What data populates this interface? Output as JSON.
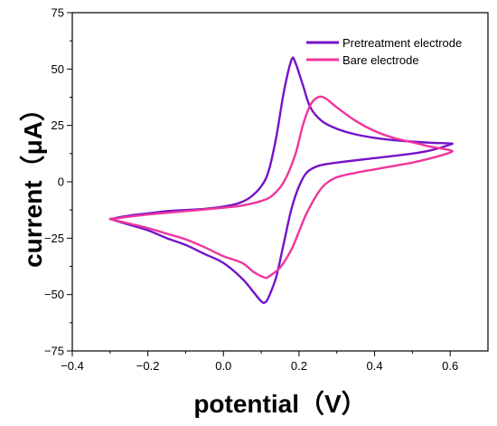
{
  "chart_data": {
    "type": "line",
    "title": "",
    "xlabel": "potential（V）",
    "ylabel": "current（μA）",
    "xlim": [
      -0.4,
      0.7
    ],
    "ylim": [
      -75,
      75
    ],
    "x_ticks": [
      "-0.4",
      "-0.2",
      "0.0",
      "0.2",
      "0.4",
      "0.6"
    ],
    "y_ticks": [
      "75",
      "50",
      "25",
      "0",
      "-25",
      "-50",
      "-75"
    ],
    "legend_position": "top-right",
    "series": [
      {
        "name": "Pretreatment electrode",
        "color": "#7413c9",
        "points": [
          [
            -0.3,
            -16.5
          ],
          [
            -0.25,
            -15
          ],
          [
            -0.2,
            -14
          ],
          [
            -0.15,
            -13
          ],
          [
            -0.1,
            -12.5
          ],
          [
            -0.05,
            -12
          ],
          [
            0.0,
            -11
          ],
          [
            0.04,
            -9.5
          ],
          [
            0.07,
            -7
          ],
          [
            0.1,
            -2
          ],
          [
            0.12,
            5
          ],
          [
            0.14,
            20
          ],
          [
            0.16,
            40
          ],
          [
            0.18,
            54
          ],
          [
            0.19,
            53
          ],
          [
            0.21,
            43
          ],
          [
            0.23,
            33
          ],
          [
            0.26,
            27
          ],
          [
            0.3,
            23.5
          ],
          [
            0.35,
            21
          ],
          [
            0.4,
            19.5
          ],
          [
            0.45,
            18.5
          ],
          [
            0.5,
            17.8
          ],
          [
            0.55,
            17.3
          ],
          [
            0.6,
            17
          ],
          [
            0.6,
            16.5
          ],
          [
            0.55,
            14
          ],
          [
            0.5,
            12.5
          ],
          [
            0.4,
            10.5
          ],
          [
            0.3,
            8.5
          ],
          [
            0.25,
            7
          ],
          [
            0.22,
            4
          ],
          [
            0.2,
            -2
          ],
          [
            0.18,
            -12
          ],
          [
            0.16,
            -27
          ],
          [
            0.14,
            -42
          ],
          [
            0.12,
            -51
          ],
          [
            0.11,
            -53.5
          ],
          [
            0.1,
            -53
          ],
          [
            0.08,
            -49
          ],
          [
            0.05,
            -43
          ],
          [
            0.0,
            -36
          ],
          [
            -0.05,
            -32
          ],
          [
            -0.1,
            -28
          ],
          [
            -0.15,
            -25
          ],
          [
            -0.2,
            -21.5
          ],
          [
            -0.25,
            -19
          ],
          [
            -0.3,
            -16.5
          ]
        ]
      },
      {
        "name": "Bare electrode",
        "color": "#f0359e",
        "points": [
          [
            -0.3,
            -16.5
          ],
          [
            -0.2,
            -14.5
          ],
          [
            -0.1,
            -13
          ],
          [
            0.0,
            -11.5
          ],
          [
            0.05,
            -10.5
          ],
          [
            0.1,
            -8.5
          ],
          [
            0.13,
            -6
          ],
          [
            0.16,
            0
          ],
          [
            0.19,
            12
          ],
          [
            0.21,
            25
          ],
          [
            0.23,
            34
          ],
          [
            0.25,
            37.5
          ],
          [
            0.27,
            37
          ],
          [
            0.3,
            33
          ],
          [
            0.35,
            27
          ],
          [
            0.4,
            22.5
          ],
          [
            0.45,
            19.5
          ],
          [
            0.5,
            17.5
          ],
          [
            0.55,
            15.5
          ],
          [
            0.6,
            14
          ],
          [
            0.6,
            13
          ],
          [
            0.55,
            10.5
          ],
          [
            0.5,
            8.5
          ],
          [
            0.45,
            7
          ],
          [
            0.4,
            5.5
          ],
          [
            0.35,
            4
          ],
          [
            0.3,
            2
          ],
          [
            0.27,
            -1
          ],
          [
            0.25,
            -5
          ],
          [
            0.22,
            -14
          ],
          [
            0.2,
            -22
          ],
          [
            0.18,
            -30
          ],
          [
            0.15,
            -38
          ],
          [
            0.12,
            -42
          ],
          [
            0.11,
            -42.5
          ],
          [
            0.08,
            -40
          ],
          [
            0.05,
            -36
          ],
          [
            0.0,
            -33
          ],
          [
            -0.05,
            -29
          ],
          [
            -0.1,
            -25.5
          ],
          [
            -0.15,
            -23
          ],
          [
            -0.2,
            -20.5
          ],
          [
            -0.25,
            -18.5
          ],
          [
            -0.3,
            -16.5
          ]
        ]
      }
    ]
  }
}
